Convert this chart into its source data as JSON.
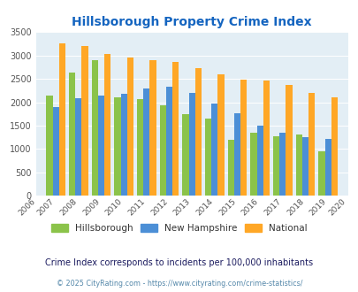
{
  "title": "Hillsborough Property Crime Index",
  "years": [
    2007,
    2008,
    2009,
    2010,
    2011,
    2012,
    2013,
    2014,
    2015,
    2016,
    2017,
    2018,
    2019
  ],
  "hillsborough": [
    2150,
    2640,
    2900,
    2100,
    2060,
    1930,
    1750,
    1650,
    1190,
    1340,
    1280,
    1300,
    950
  ],
  "new_hampshire": [
    1900,
    2090,
    2150,
    2180,
    2290,
    2340,
    2190,
    1980,
    1760,
    1500,
    1350,
    1250,
    1210
  ],
  "national": [
    3260,
    3200,
    3040,
    2950,
    2900,
    2860,
    2720,
    2600,
    2490,
    2470,
    2370,
    2200,
    2100
  ],
  "color_hillsborough": "#8BC34A",
  "color_new_hampshire": "#4C8FD6",
  "color_national": "#FFA726",
  "bg_color": "#E3EEF5",
  "title_color": "#1565C0",
  "subtitle": "Crime Index corresponds to incidents per 100,000 inhabitants",
  "footer": "© 2025 CityRating.com - https://www.cityrating.com/crime-statistics/",
  "ylim": [
    0,
    3500
  ],
  "yticks": [
    0,
    500,
    1000,
    1500,
    2000,
    2500,
    3000,
    3500
  ],
  "legend_text_color": "#333333",
  "subtitle_color": "#1a1a5e",
  "footer_color": "#5588aa"
}
